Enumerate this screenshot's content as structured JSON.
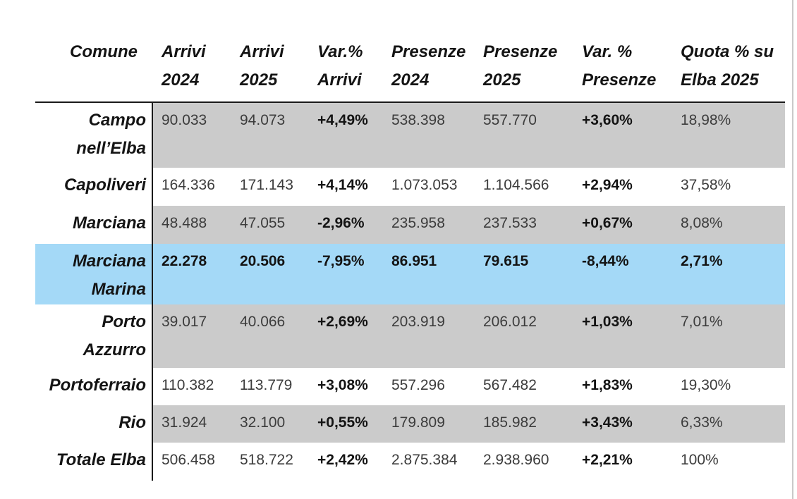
{
  "table": {
    "title_semantic": "Statistiche turistiche Elba per comune",
    "header": {
      "comune": "Comune",
      "cols": [
        "Arrivi\n2024",
        "Arrivi\n2025",
        "Var.%\nArrivi",
        "Presenze\n2024",
        "Presenze\n2025",
        "Var. %\nPresenze",
        "Quota % su\nElba 2025"
      ]
    },
    "col_keys": [
      "arrivi-2024",
      "arrivi-2025",
      "var-pct-arrivi",
      "presenze-2024",
      "presenze-2025",
      "var-pct-presenze",
      "quota-pct-elba-2025"
    ],
    "col_bold": [
      false,
      false,
      true,
      false,
      false,
      true,
      false
    ],
    "rows": [
      {
        "comune": "Campo nell’Elba",
        "shade": "gray",
        "highlight": false,
        "values": [
          "90.033",
          "94.073",
          "+4,49%",
          "538.398",
          "557.770",
          "+3,60%",
          "18,98%"
        ]
      },
      {
        "comune": "Capoliveri",
        "shade": "white",
        "highlight": false,
        "values": [
          "164.336",
          "171.143",
          "+4,14%",
          "1.073.053",
          "1.104.566",
          "+2,94%",
          "37,58%"
        ]
      },
      {
        "comune": "Marciana",
        "shade": "gray",
        "highlight": false,
        "values": [
          "48.488",
          "47.055",
          "-2,96%",
          "235.958",
          "237.533",
          "+0,67%",
          "8,08%"
        ]
      },
      {
        "comune": "Marciana Marina",
        "shade": "blue",
        "highlight": true,
        "values": [
          "22.278",
          "20.506",
          "-7,95%",
          "86.951",
          "79.615",
          "-8,44%",
          "2,71%"
        ]
      },
      {
        "comune": "Porto Azzurro",
        "shade": "gray",
        "highlight": false,
        "values": [
          "39.017",
          "40.066",
          "+2,69%",
          "203.919",
          "206.012",
          "+1,03%",
          "7,01%"
        ]
      },
      {
        "comune": "Portoferraio",
        "shade": "white",
        "highlight": false,
        "values": [
          "110.382",
          "113.779",
          "+3,08%",
          "557.296",
          "567.482",
          "+1,83%",
          "19,30%"
        ]
      },
      {
        "comune": "Rio",
        "shade": "gray",
        "highlight": false,
        "values": [
          "31.924",
          "32.100",
          "+0,55%",
          "179.809",
          "185.982",
          "+3,43%",
          "6,33%"
        ]
      },
      {
        "comune": "Totale Elba",
        "shade": "white",
        "highlight": false,
        "values": [
          "506.458",
          "518.722",
          "+2,42%",
          "2.875.384",
          "2.938.960",
          "+2,21%",
          "100%"
        ]
      }
    ],
    "colors": {
      "row_gray": "#cbcbcb",
      "row_highlight_blue": "#a4d9f7",
      "rule_black": "#1a1a1a",
      "page_edge_gray": "#c9c9c9"
    }
  }
}
